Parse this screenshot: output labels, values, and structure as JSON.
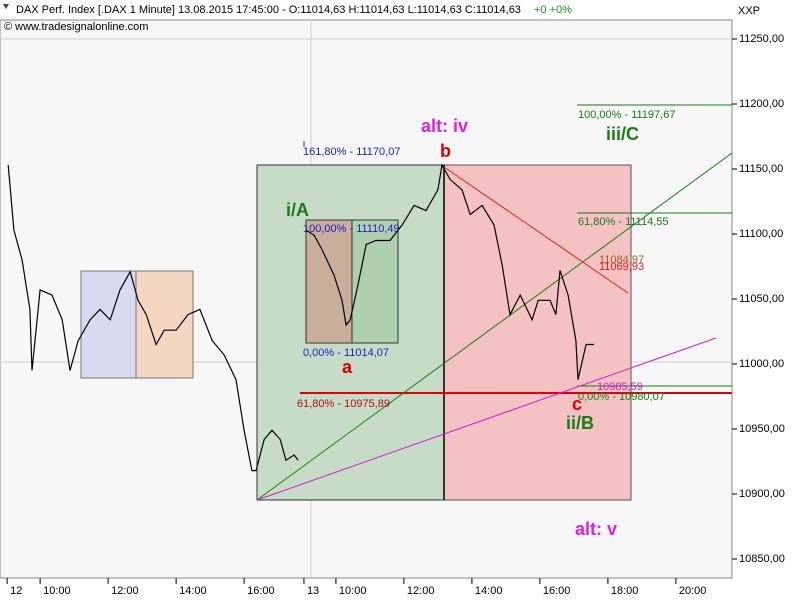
{
  "chart_data": {
    "type": "line",
    "title": "DAX Perf. Index [.DAX  1 Minute] 13.08.2015 17:45:00 - O:11014,63 H:11014,63 L:11014,63 C:11014,63",
    "change": "+0 +0%",
    "subtitle": "© www.tradesignalonline.com",
    "axis_label": "XXP",
    "color": "#000000",
    "x": [
      -0.35,
      -0.18,
      0.06,
      0.29,
      0.35,
      0.59,
      0.94,
      1.24,
      1.47,
      1.71,
      2.06,
      2.35,
      2.65,
      2.94,
      3.24,
      3.47,
      3.71,
      4.0,
      4.24,
      4.59,
      4.94,
      5.29,
      5.65,
      6.0,
      6.35,
      6.59,
      6.82,
      6.94,
      7.18,
      7.41,
      7.65,
      7.82,
      8.06,
      8.18,
      8.3,
      8.41,
      8.65,
      8.88,
      9.24,
      9.47,
      9.59,
      9.71,
      9.94,
      10.18,
      10.47,
      10.88,
      11.24,
      11.59,
      11.94,
      12.29,
      12.41,
      12.65,
      13.0,
      13.24,
      13.59,
      13.94,
      14.18,
      14.41,
      14.71,
      15.06,
      15.24,
      15.59,
      15.76,
      15.88,
      16.12,
      16.35,
      16.41,
      16.65,
      16.88
    ],
    "values": [
      11153,
      11103,
      11080,
      11042,
      10995,
      11057,
      11053,
      11034,
      10995,
      11018,
      11034,
      11042,
      11034,
      11057,
      11071,
      11049,
      11038,
      11015,
      11026,
      11026,
      11038,
      11042,
      11018,
      11007,
      10988,
      10949,
      10918,
      10918,
      10942,
      10949,
      10942,
      10926,
      10930,
      10926,
      null,
      11103,
      11099,
      11088,
      11068,
      11049,
      11030,
      11034,
      11061,
      11092,
      11095,
      11095,
      11107,
      11122,
      11118,
      11134,
      11153,
      11142,
      11134,
      11115,
      11122,
      11107,
      11076,
      11038,
      11053,
      11034,
      11049,
      11049,
      11038,
      11072,
      11053,
      11018,
      10988,
      11015,
      11015
    ],
    "xlim": [
      -0.59,
      20.94
    ],
    "ylim": [
      10835.4,
      11264.6
    ],
    "xticks": [
      {
        "value": -0.38,
        "label": "12"
      },
      {
        "value": 0.59,
        "label": "10:00"
      },
      {
        "value": 2.59,
        "label": "12:00"
      },
      {
        "value": 4.59,
        "label": "14:00"
      },
      {
        "value": 6.59,
        "label": "16:00"
      },
      {
        "value": 8.35,
        "label": "13"
      },
      {
        "value": 9.29,
        "label": "10:00"
      },
      {
        "value": 11.29,
        "label": "12:00"
      },
      {
        "value": 13.29,
        "label": "14:00"
      },
      {
        "value": 15.29,
        "label": "16:00"
      },
      {
        "value": 17.29,
        "label": "18:00"
      },
      {
        "value": 19.29,
        "label": "20:00"
      }
    ],
    "yticks": [
      {
        "value": 11250,
        "label": "11250,00"
      },
      {
        "value": 11200,
        "label": "11200,00"
      },
      {
        "value": 11150,
        "label": "11150,00"
      },
      {
        "value": 11100,
        "label": "11100,00"
      },
      {
        "value": 11050,
        "label": "11050,00"
      },
      {
        "value": 11000,
        "label": "11000,00"
      },
      {
        "value": 10950,
        "label": "10950,00"
      },
      {
        "value": 10900,
        "label": "10900,00"
      },
      {
        "value": 10850,
        "label": "10850,00"
      }
    ],
    "grid": false,
    "annotations": [
      "alt: iv",
      "b",
      "161,80% - 11170,07",
      "i/A",
      "100,00% - 11110,49",
      "0,00% - 11014,07",
      "a",
      "61,80% - 10975,89",
      "100,00% - 11197,67",
      "iii/C",
      "61,80% - 11114,55",
      "11084,97",
      "11069,93",
      "10985,59",
      "0,00% - 10980,07",
      "c",
      "ii/B",
      "alt: v"
    ]
  }
}
